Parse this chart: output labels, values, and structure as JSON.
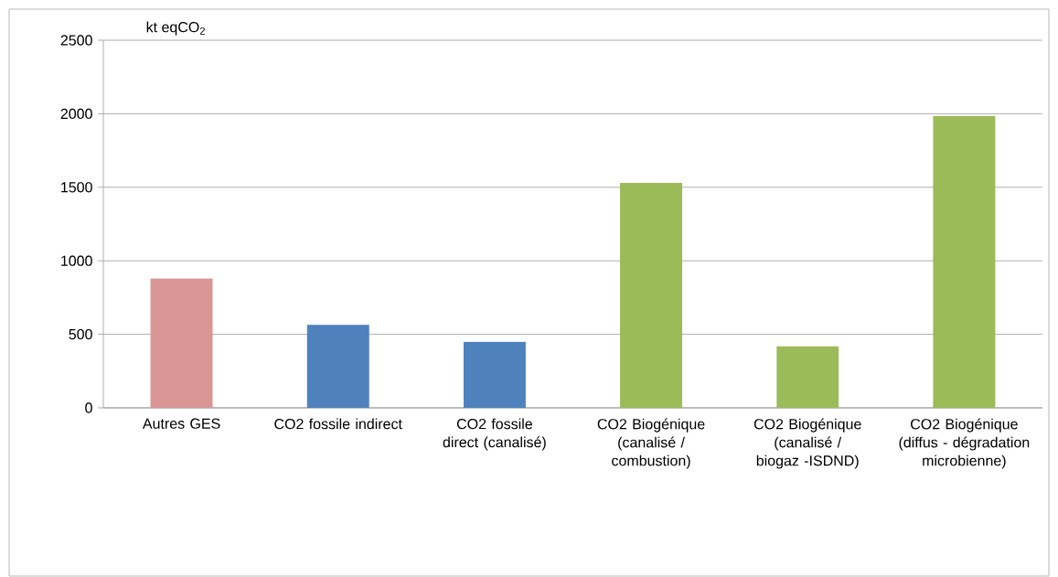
{
  "chart_data": {
    "type": "bar",
    "ylabel": "kt eqCO$_{2}$",
    "categories": [
      "Autres GES",
      "CO2 fossile indirect",
      "CO2 fossile direct (canalisé)",
      "CO2 Biogénique (canalisé / combustion)",
      "CO2 Biogénique (canalisé / biogaz -ISDND)",
      "CO2 Biogénique (diffus - dégradation microbienne)"
    ],
    "values": [
      880,
      565,
      450,
      1530,
      420,
      1985
    ],
    "colors": [
      "#d99694",
      "#4f81bd",
      "#4f81bd",
      "#9bbb59",
      "#9bbb59",
      "#9bbb59"
    ],
    "ylim": [
      0,
      2500
    ],
    "yticks": [
      0,
      500,
      1000,
      1500,
      2000,
      2500
    ],
    "grid": "y"
  }
}
